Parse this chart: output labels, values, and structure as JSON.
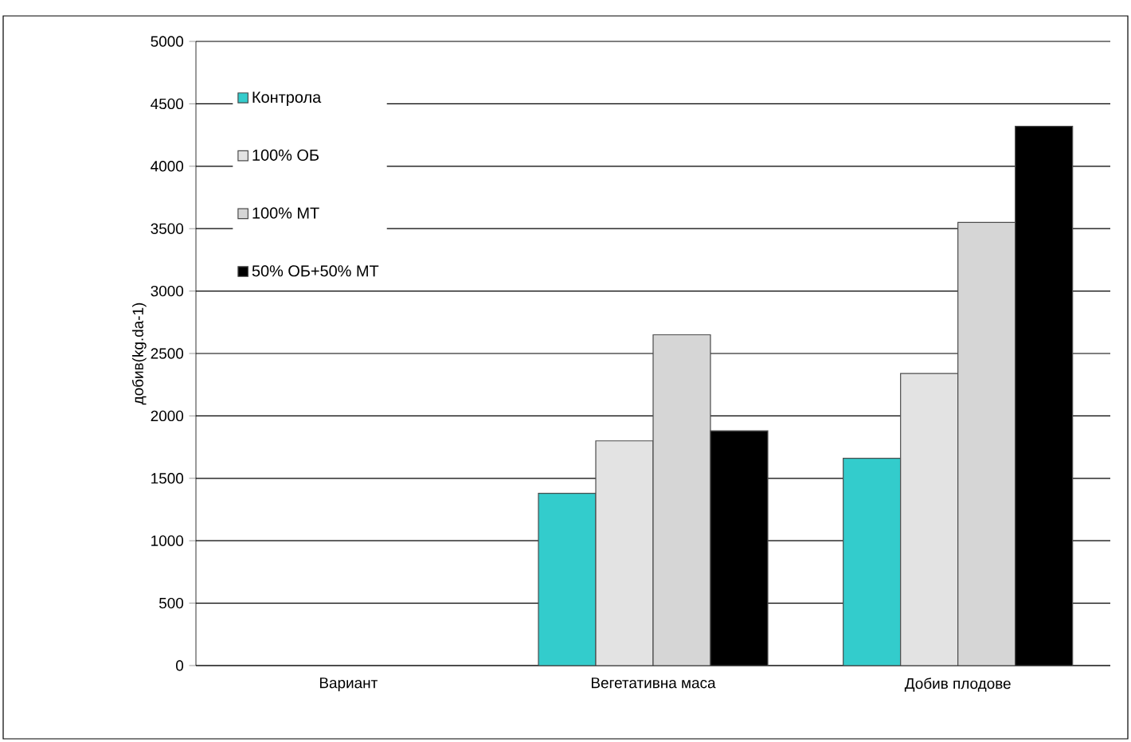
{
  "chart_data": {
    "type": "bar",
    "ylabel": "добив(kg.da-1)",
    "categories": [
      "Вариант",
      "Вегетативна маса",
      "Добив плодове"
    ],
    "series": [
      {
        "name": "Контрола",
        "color": "#33cccc",
        "values": [
          null,
          1380,
          1660
        ]
      },
      {
        "name": "100% ОБ",
        "color": "#e3e3e3",
        "values": [
          null,
          1800,
          2340
        ]
      },
      {
        "name": "100% МТ",
        "color": "#d6d6d6",
        "values": [
          null,
          2650,
          3550
        ]
      },
      {
        "name": "50% ОБ+50% МТ",
        "color": "#000000",
        "values": [
          null,
          1880,
          4320
        ]
      }
    ],
    "ylim": [
      0,
      5000
    ],
    "yticks": [
      0,
      500,
      1000,
      1500,
      2000,
      2500,
      3000,
      3500,
      4000,
      4500,
      5000
    ],
    "grid": "y",
    "legend": "top left"
  }
}
